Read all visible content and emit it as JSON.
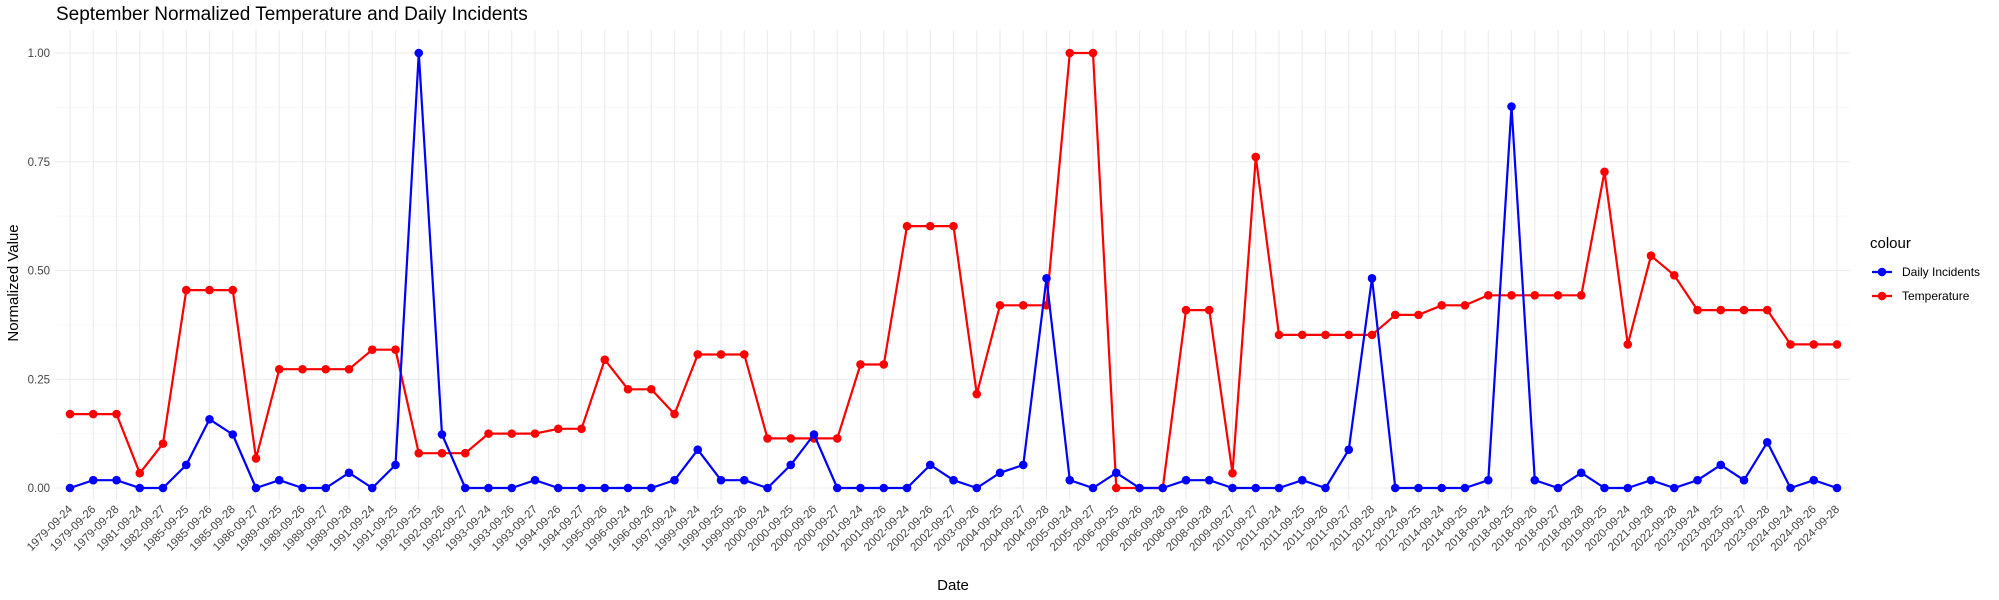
{
  "chart_data": {
    "type": "line",
    "title": "September Normalized Temperature and Daily Incidents",
    "xlabel": "Date",
    "ylabel": "Normalized Value",
    "ylim": [
      0,
      1
    ],
    "yticks": [
      "0.00",
      "0.25",
      "0.50",
      "0.75",
      "1.00"
    ],
    "grid": true,
    "legend": {
      "title": "colour",
      "position": "right"
    },
    "categories": [
      "1979-09-24",
      "1979-09-26",
      "1979-09-28",
      "1981-09-24",
      "1982-09-27",
      "1985-09-25",
      "1985-09-26",
      "1985-09-28",
      "1986-09-27",
      "1989-09-25",
      "1989-09-26",
      "1989-09-27",
      "1989-09-28",
      "1991-09-24",
      "1991-09-25",
      "1992-09-25",
      "1992-09-26",
      "1992-09-27",
      "1993-09-24",
      "1993-09-26",
      "1993-09-27",
      "1994-09-26",
      "1994-09-27",
      "1995-09-26",
      "1996-09-24",
      "1996-09-26",
      "1997-09-24",
      "1999-09-24",
      "1999-09-25",
      "1999-09-26",
      "2000-09-24",
      "2000-09-25",
      "2000-09-26",
      "2000-09-27",
      "2001-09-24",
      "2001-09-26",
      "2002-09-24",
      "2002-09-26",
      "2002-09-27",
      "2003-09-26",
      "2004-09-25",
      "2004-09-27",
      "2004-09-28",
      "2005-09-24",
      "2005-09-27",
      "2006-09-25",
      "2006-09-26",
      "2006-09-28",
      "2008-09-26",
      "2008-09-28",
      "2009-09-27",
      "2010-09-27",
      "2011-09-24",
      "2011-09-25",
      "2011-09-26",
      "2011-09-27",
      "2011-09-28",
      "2012-09-24",
      "2012-09-25",
      "2014-09-24",
      "2014-09-25",
      "2018-09-24",
      "2018-09-25",
      "2018-09-26",
      "2018-09-27",
      "2018-09-28",
      "2019-09-25",
      "2020-09-24",
      "2021-09-28",
      "2022-09-28",
      "2023-09-24",
      "2023-09-25",
      "2023-09-27",
      "2023-09-28",
      "2024-09-24",
      "2024-09-26",
      "2024-09-28"
    ],
    "series": [
      {
        "name": "Daily Incidents",
        "color": "#0000ff",
        "values": [
          0.0,
          0.018,
          0.018,
          0.0,
          0.0,
          0.053,
          0.158,
          0.123,
          0.0,
          0.018,
          0.0,
          0.0,
          0.035,
          0.0,
          0.053,
          1.0,
          0.123,
          0.0,
          0.0,
          0.0,
          0.018,
          0.0,
          0.0,
          0.0,
          0.0,
          0.0,
          0.018,
          0.088,
          0.018,
          0.018,
          0.0,
          0.053,
          0.123,
          0.0,
          0.0,
          0.0,
          0.0,
          0.053,
          0.018,
          0.0,
          0.035,
          0.053,
          0.482,
          0.018,
          0.0,
          0.035,
          0.0,
          0.0,
          0.018,
          0.018,
          0.0,
          0.0,
          0.0,
          0.018,
          0.0,
          0.088,
          0.482,
          0.0,
          0.0,
          0.0,
          0.0,
          0.018,
          0.877,
          0.018,
          0.0,
          0.035,
          0.0,
          0.0,
          0.018,
          0.0,
          0.018,
          0.053,
          0.018,
          0.105,
          0.0,
          0.018,
          0.0
        ]
      },
      {
        "name": "Temperature",
        "color": "#ff0000",
        "values": [
          0.17,
          0.17,
          0.17,
          0.034,
          0.102,
          0.455,
          0.455,
          0.455,
          0.068,
          0.273,
          0.273,
          0.273,
          0.273,
          0.318,
          0.318,
          0.08,
          0.08,
          0.08,
          0.125,
          0.125,
          0.125,
          0.136,
          0.136,
          0.295,
          0.227,
          0.227,
          0.17,
          0.307,
          0.307,
          0.307,
          0.114,
          0.114,
          0.114,
          0.114,
          0.284,
          0.284,
          0.602,
          0.602,
          0.602,
          0.216,
          0.42,
          0.42,
          0.42,
          1.0,
          1.0,
          0.0,
          0.0,
          0.0,
          0.409,
          0.409,
          0.034,
          0.761,
          0.352,
          0.352,
          0.352,
          0.352,
          0.352,
          0.398,
          0.398,
          0.42,
          0.42,
          0.443,
          0.443,
          0.443,
          0.443,
          0.443,
          0.727,
          0.33,
          0.534,
          0.489,
          0.409,
          0.409,
          0.409,
          0.409,
          0.33,
          0.33,
          0.33
        ]
      }
    ]
  }
}
